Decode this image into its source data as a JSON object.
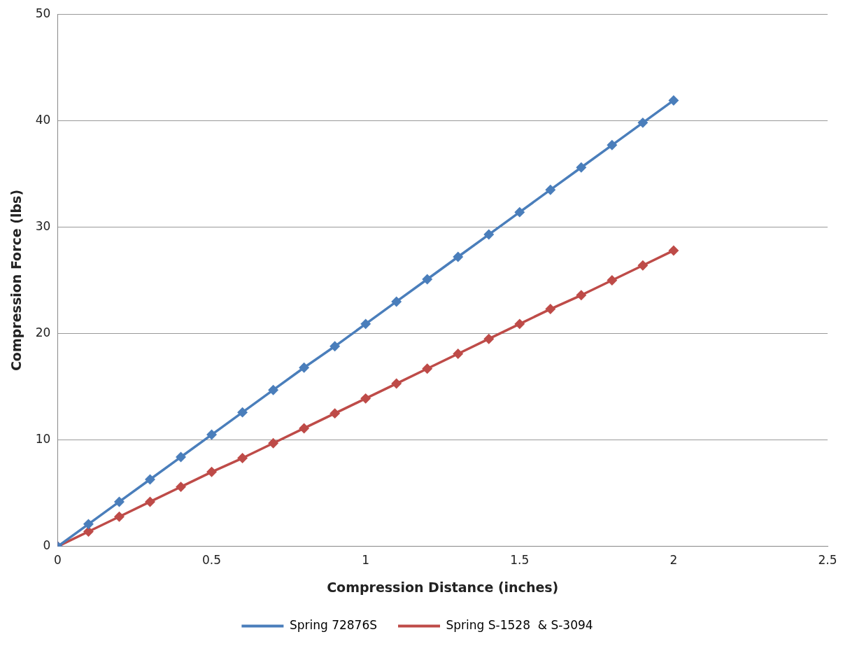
{
  "chart_data": {
    "type": "line",
    "xlabel": "Compression Distance (inches)",
    "ylabel": "Compression Force (lbs)",
    "x": [
      0,
      0.1,
      0.2,
      0.3,
      0.4,
      0.5,
      0.6,
      0.7,
      0.8,
      0.9,
      1,
      1.1,
      1.2,
      1.3,
      1.4,
      1.5,
      1.6,
      1.7,
      1.8,
      1.9,
      2
    ],
    "series": [
      {
        "name": "Spring 72876S",
        "color": "#4a7ebb",
        "values": [
          0,
          2.1,
          4.2,
          6.3,
          8.4,
          10.5,
          12.6,
          14.7,
          16.8,
          18.8,
          20.9,
          23.0,
          25.1,
          27.2,
          29.3,
          31.4,
          33.5,
          35.6,
          37.7,
          39.8,
          41.9
        ]
      },
      {
        "name": "Spring S-1528  & S-3094",
        "color": "#be4b48",
        "values": [
          0,
          1.4,
          2.8,
          4.2,
          5.6,
          7.0,
          8.3,
          9.7,
          11.1,
          12.5,
          13.9,
          15.3,
          16.7,
          18.1,
          19.5,
          20.9,
          22.3,
          23.6,
          25.0,
          26.4,
          27.8
        ]
      }
    ],
    "xlim": [
      0,
      2.5
    ],
    "xticks": [
      0,
      0.5,
      1,
      1.5,
      2,
      2.5
    ],
    "ylim": [
      0,
      50
    ],
    "yticks": [
      0,
      10,
      20,
      30,
      40,
      50
    ],
    "grid": "y",
    "legend": "bottom",
    "marker": "diamond",
    "line_style": "solid"
  }
}
